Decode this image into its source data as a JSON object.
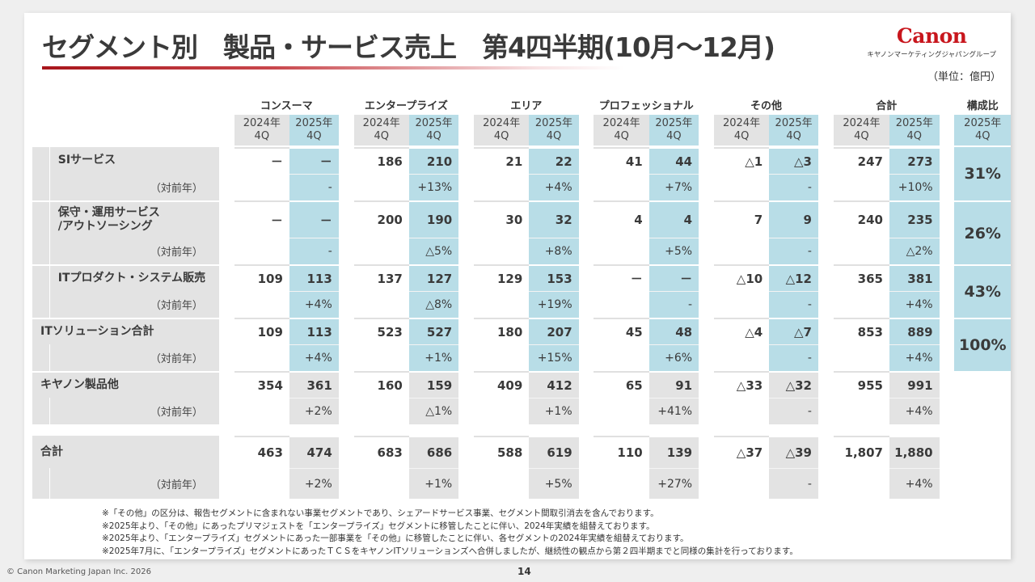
{
  "title": "セグメント別　製品・サービス売上　第4四半期(10月～12月)",
  "logo": {
    "brand": "Canon",
    "subtitle": "キヤノンマーケティングジャパングループ"
  },
  "unit": "（単位：億円）",
  "segments": [
    "コンスーマ",
    "エンタープライズ",
    "エリア",
    "プロフェッショナル",
    "その他",
    "合計"
  ],
  "mix_header": "構成比",
  "period_2024": [
    "2024年",
    "4Q"
  ],
  "period_2025": [
    "2025年",
    "4Q"
  ],
  "yoy_label": "（対前年）",
  "rows": [
    {
      "label": "SIサービス",
      "values": [
        [
          "－",
          "－"
        ],
        [
          "186",
          "210"
        ],
        [
          "21",
          "22"
        ],
        [
          "41",
          "44"
        ],
        [
          "△1",
          "△3"
        ],
        [
          "247",
          "273"
        ]
      ],
      "yoy": [
        "-",
        "+13%",
        "+4%",
        "+7%",
        "-",
        "+10%"
      ],
      "mix": "31%"
    },
    {
      "label": "保守・運用サービス\n/アウトソーシング",
      "values": [
        [
          "－",
          "－"
        ],
        [
          "200",
          "190"
        ],
        [
          "30",
          "32"
        ],
        [
          "4",
          "4"
        ],
        [
          "7",
          "9"
        ],
        [
          "240",
          "235"
        ]
      ],
      "yoy": [
        "-",
        "△5%",
        "+8%",
        "+5%",
        "-",
        "△2%"
      ],
      "mix": "26%"
    },
    {
      "label": "ITプロダクト・システム販売",
      "values": [
        [
          "109",
          "113"
        ],
        [
          "137",
          "127"
        ],
        [
          "129",
          "153"
        ],
        [
          "－",
          "－"
        ],
        [
          "△10",
          "△12"
        ],
        [
          "365",
          "381"
        ]
      ],
      "yoy": [
        "+4%",
        "△8%",
        "+19%",
        "-",
        "-",
        "+4%"
      ],
      "mix": "43%"
    },
    {
      "label": "ITソリューション合計",
      "values": [
        [
          "109",
          "113"
        ],
        [
          "523",
          "527"
        ],
        [
          "180",
          "207"
        ],
        [
          "45",
          "48"
        ],
        [
          "△4",
          "△7"
        ],
        [
          "853",
          "889"
        ]
      ],
      "yoy": [
        "+4%",
        "+1%",
        "+15%",
        "+6%",
        "-",
        "+4%"
      ],
      "mix": "100%"
    },
    {
      "label": "キヤノン製品他",
      "values": [
        [
          "354",
          "361"
        ],
        [
          "160",
          "159"
        ],
        [
          "409",
          "412"
        ],
        [
          "65",
          "91"
        ],
        [
          "△33",
          "△32"
        ],
        [
          "955",
          "991"
        ]
      ],
      "yoy": [
        "+2%",
        "△1%",
        "+1%",
        "+41%",
        "-",
        "+4%"
      ]
    },
    {
      "label": "合計",
      "values": [
        [
          "463",
          "474"
        ],
        [
          "683",
          "686"
        ],
        [
          "588",
          "619"
        ],
        [
          "110",
          "139"
        ],
        [
          "△37",
          "△39"
        ],
        [
          "1,807",
          "1,880"
        ]
      ],
      "yoy": [
        "+2%",
        "+1%",
        "+5%",
        "+27%",
        "-",
        "+4%"
      ]
    }
  ],
  "notes": [
    "※「その他」の区分は、報告セグメントに含まれない事業セグメントであり、シェアードサービス事業、セグメント間取引消去を含んでおります。",
    "※2025年より、「その他」にあったプリマジェストを「エンタープライズ」セグメントに移管したことに伴い、2024年実績を組替えております。",
    "※2025年より、「エンタープライズ」セグメントにあった一部事業を「その他」に移管したことに伴い、各セグメントの2024年実績を組替えております。",
    "※2025年7月に、「エンタープライズ」セグメントにあったＴＣＳをキヤノンITソリューションズへ合併しましたが、継続性の観点から第２四半期までと同様の集計を行っております。"
  ],
  "footer": {
    "copyright": "© Canon Marketing Japan Inc. 2026",
    "page": "14"
  }
}
